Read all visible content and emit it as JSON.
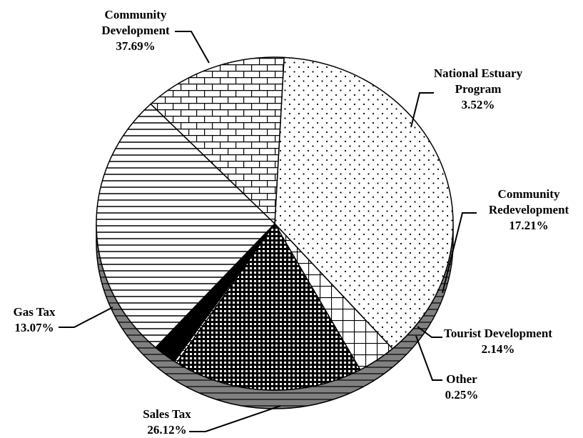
{
  "chart_data": {
    "type": "pie",
    "title": "",
    "slices": [
      {
        "name": "Community Development",
        "name_lines": [
          "Community",
          "Development"
        ],
        "value": 37.69,
        "pct_label": "37.69%",
        "pattern": "dots",
        "color": "#ffffff"
      },
      {
        "name": "National Estuary Program",
        "name_lines": [
          "National Estuary",
          "Program"
        ],
        "value": 3.52,
        "pct_label": "3.52%",
        "pattern": "grid-open",
        "color": "#ffffff"
      },
      {
        "name": "Community Redevelopment",
        "name_lines": [
          "Community",
          "Redevelopment"
        ],
        "value": 17.21,
        "pct_label": "17.21%",
        "pattern": "grid-dense",
        "color": "#000000"
      },
      {
        "name": "Other",
        "name_lines": [
          "Other"
        ],
        "value": 0.25,
        "pct_label": "0.25%",
        "pattern": "grid-light",
        "color": "#ffffff"
      },
      {
        "name": "Tourist Development",
        "name_lines": [
          "Tourist Development"
        ],
        "value": 2.14,
        "pct_label": "2.14%",
        "pattern": "solid",
        "color": "#000000"
      },
      {
        "name": "Sales Tax",
        "name_lines": [
          "Sales Tax"
        ],
        "value": 26.12,
        "pct_label": "26.12%",
        "pattern": "hlines",
        "color": "#ffffff"
      },
      {
        "name": "Gas Tax",
        "name_lines": [
          "Gas Tax"
        ],
        "value": 13.07,
        "pct_label": "13.07%",
        "pattern": "bricks",
        "color": "#ffffff"
      }
    ],
    "depth_color": "#808080",
    "outline_color": "#000000"
  }
}
